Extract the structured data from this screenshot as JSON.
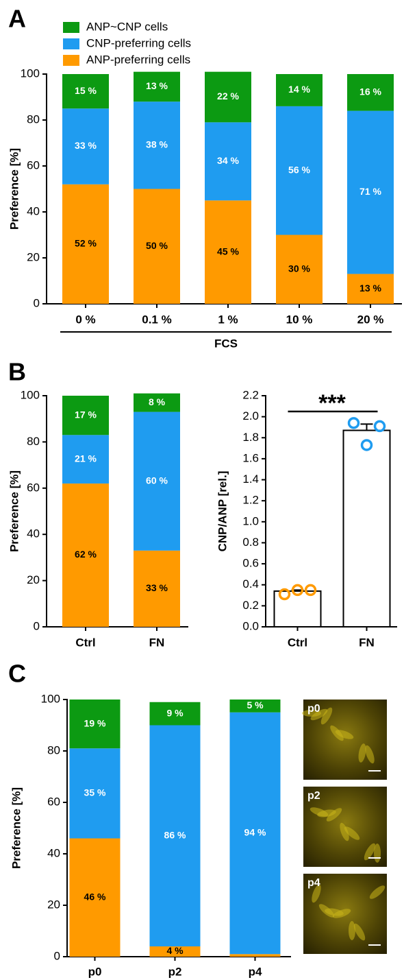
{
  "chart_data": [
    {
      "type": "stacked_bar",
      "panel": "A",
      "y_label": "Preference [%]",
      "x_label": "FCS",
      "categories": [
        "0 %",
        "0.1 %",
        "1 %",
        "10 %",
        "20 %"
      ],
      "series": [
        {
          "name": "ANP-preferring cells",
          "color": "#ff9a00",
          "label_color": "#000000",
          "values": [
            52,
            50,
            45,
            30,
            13
          ],
          "value_labels": [
            "52 %",
            "50 %",
            "45 %",
            "30 %",
            "13 %"
          ]
        },
        {
          "name": "CNP-preferring cells",
          "color": "#1f9cf0",
          "label_color": "#ffffff",
          "values": [
            33,
            38,
            34,
            56,
            71
          ],
          "value_labels": [
            "33 %",
            "38 %",
            "34 %",
            "56 %",
            "71 %"
          ]
        },
        {
          "name": "ANP~CNP cells",
          "color": "#0c9a12",
          "label_color": "#ffffff",
          "values": [
            15,
            13,
            22,
            14,
            16
          ],
          "value_labels": [
            "15 %",
            "13 %",
            "22 %",
            "14 %",
            "16 %"
          ]
        }
      ],
      "ylim": [
        0,
        100
      ],
      "yticks": [
        0,
        20,
        40,
        60,
        80,
        100
      ],
      "legend": true
    },
    {
      "type": "stacked_bar",
      "panel": "B",
      "y_label": "Preference [%]",
      "categories": [
        "Ctrl",
        "FN"
      ],
      "series": [
        {
          "color": "#ff9a00",
          "label_color": "#000000",
          "values": [
            62,
            33
          ],
          "value_labels": [
            "62 %",
            "33 %"
          ]
        },
        {
          "color": "#1f9cf0",
          "label_color": "#ffffff",
          "values": [
            21,
            60
          ],
          "value_labels": [
            "21 %",
            "60 %"
          ]
        },
        {
          "color": "#0c9a12",
          "label_color": "#ffffff",
          "values": [
            17,
            8
          ],
          "value_labels": [
            "17 %",
            "8 %"
          ]
        }
      ],
      "ylim": [
        0,
        100
      ],
      "yticks": [
        0,
        20,
        40,
        60,
        80,
        100
      ]
    },
    {
      "type": "bar",
      "y_label": "CNP/ANP [rel.]",
      "annotation": "***",
      "categories": [
        "Ctrl",
        "FN"
      ],
      "values": [
        0.34,
        1.87
      ],
      "errors": [
        0.01,
        0.06
      ],
      "color": "#ffffff",
      "points": [
        [
          0.31,
          0.35,
          0.35
        ],
        [
          1.94,
          1.73,
          1.91
        ]
      ],
      "point_colors": [
        "#ff9a00",
        "#1f9cf0"
      ],
      "ylim": [
        0,
        2.2
      ],
      "yticks": [
        {
          "value": 0,
          "label": "0.0"
        },
        0.2,
        0.4,
        0.6,
        0.8,
        {
          "value": 1,
          "label": "1.0"
        },
        1.2,
        1.4,
        1.6,
        1.8,
        {
          "value": 2,
          "label": "2.0"
        },
        2.2
      ]
    },
    {
      "type": "stacked_bar",
      "panel": "C",
      "y_label": "Preference [%]",
      "categories": [
        "p0",
        "p2",
        "p4"
      ],
      "series": [
        {
          "color": "#ff9a00",
          "label_color": "#000000",
          "values": [
            46,
            4,
            1
          ],
          "value_labels": [
            "46 %",
            "4 %",
            null
          ]
        },
        {
          "color": "#1f9cf0",
          "label_color": "#ffffff",
          "values": [
            35,
            86,
            94
          ],
          "value_labels": [
            "35 %",
            "86 %",
            "94 %"
          ]
        },
        {
          "color": "#0c9a12",
          "label_color": "#ffffff",
          "values": [
            19,
            9,
            5
          ],
          "value_labels": [
            "19 %",
            "9 %",
            "5 %"
          ]
        }
      ],
      "ylim": [
        0,
        100
      ],
      "yticks": [
        0,
        20,
        40,
        60,
        80,
        100
      ],
      "image_labels": [
        "p0",
        "p2",
        "p4"
      ]
    }
  ]
}
